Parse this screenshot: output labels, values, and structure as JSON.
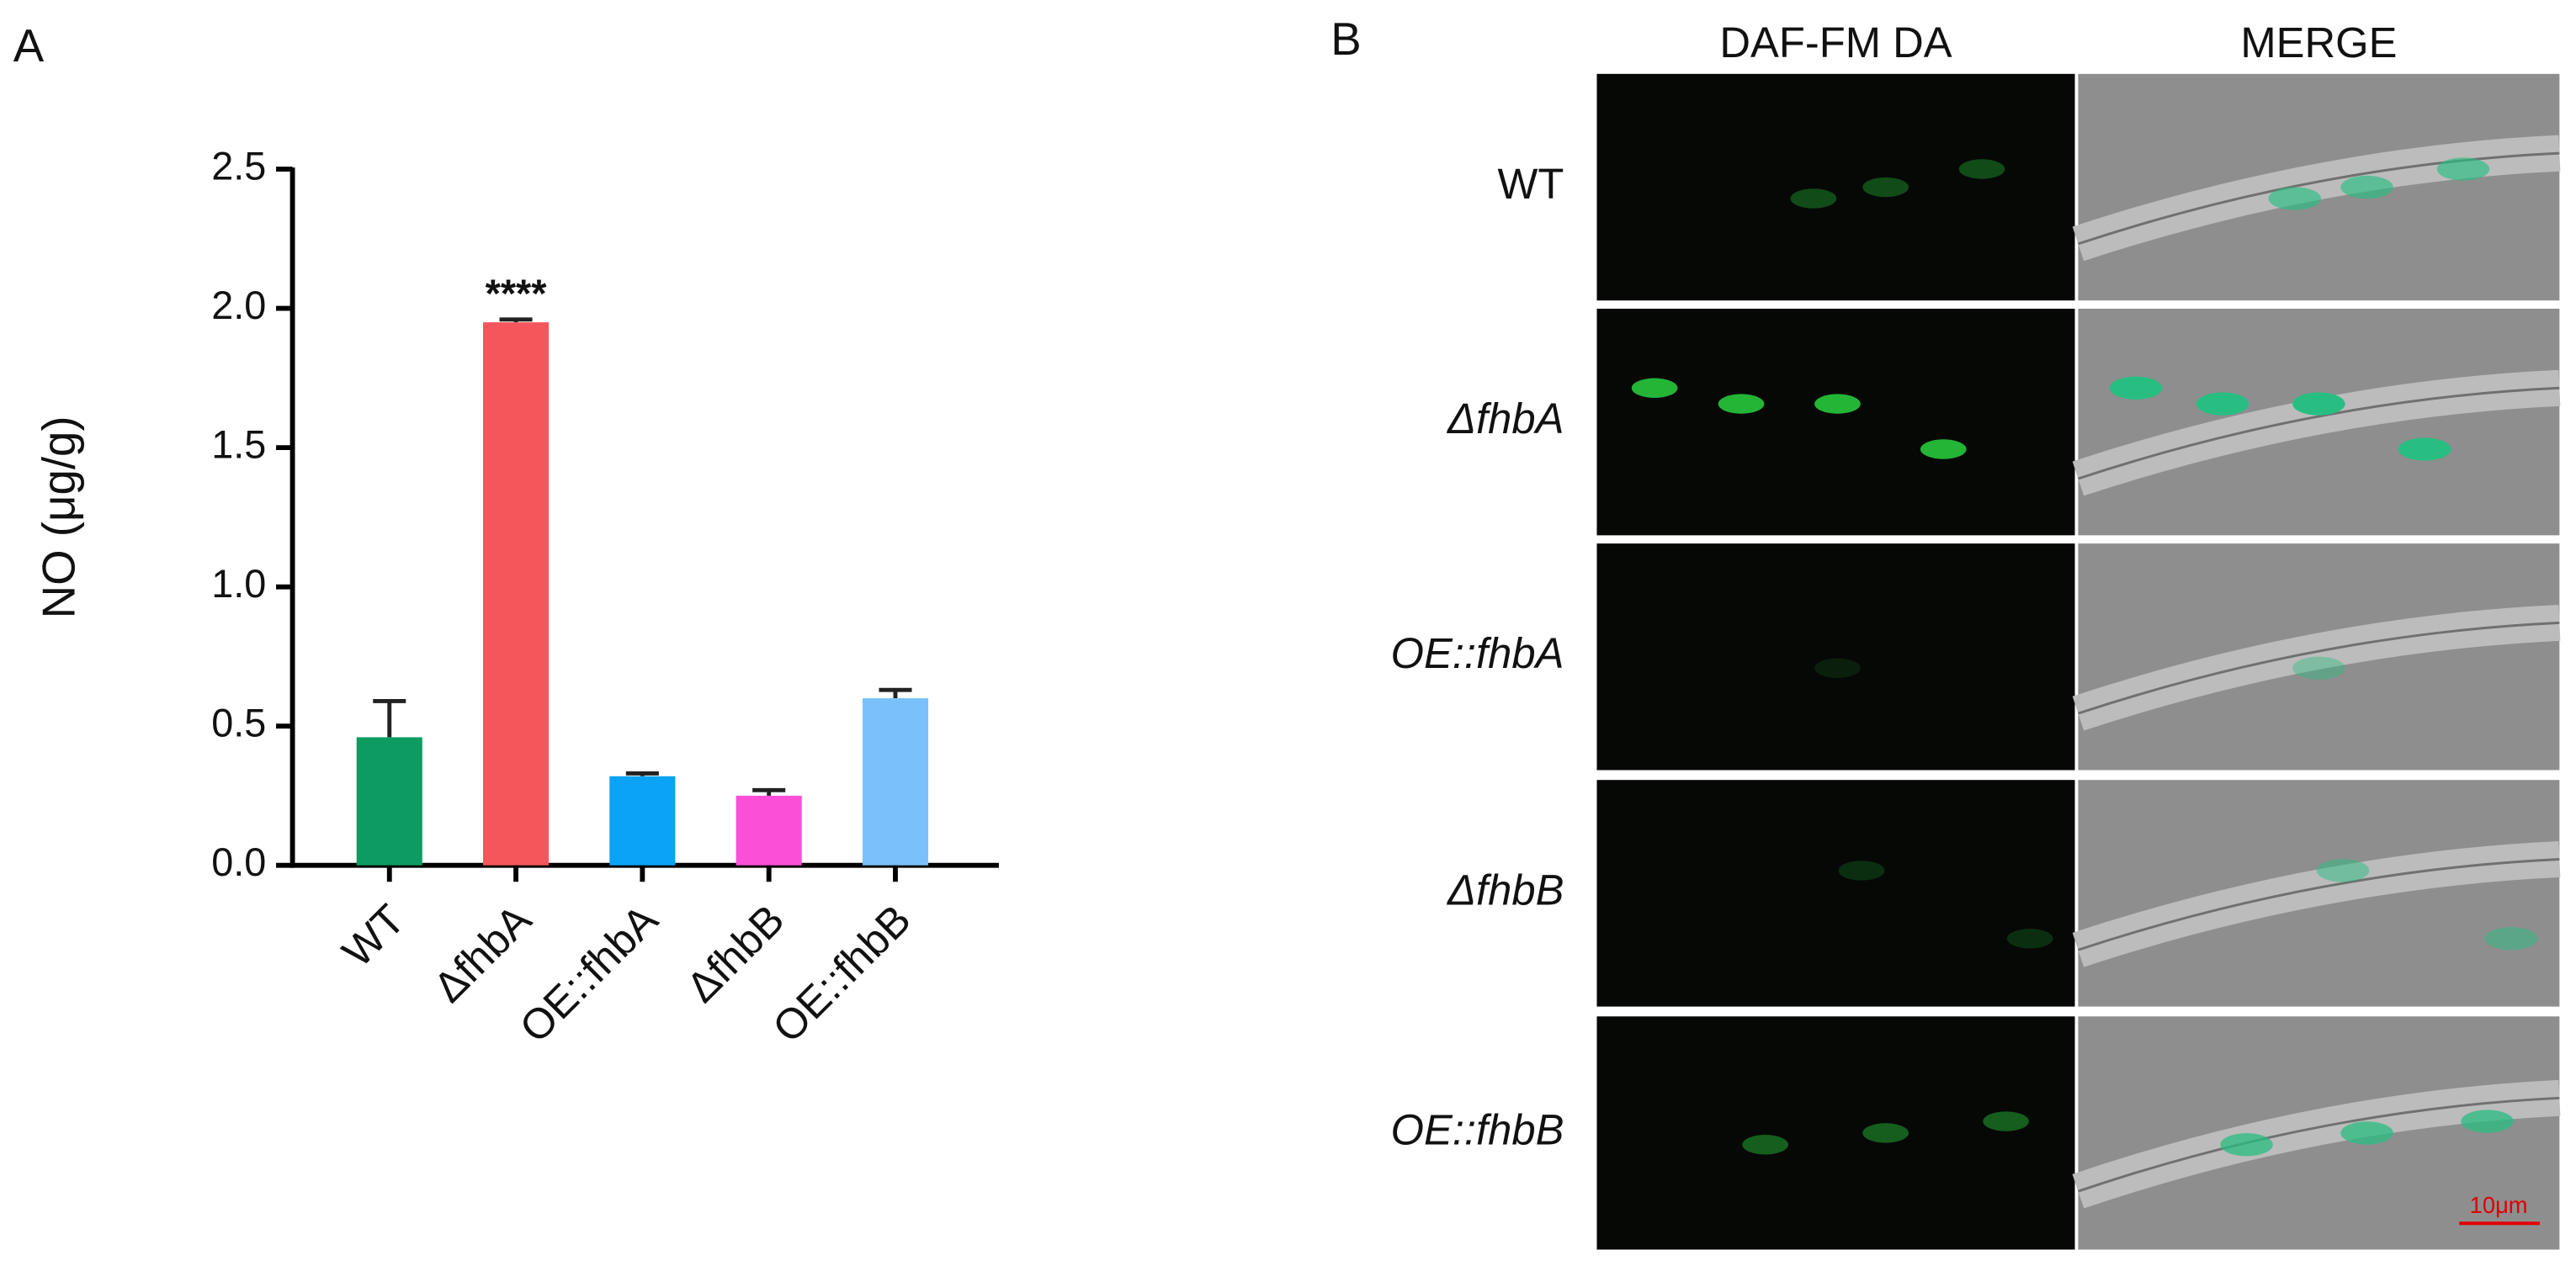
{
  "panel_labels": [
    "A",
    "B"
  ],
  "chart_data": {
    "type": "bar",
    "ylabel": "NO (μg/g)",
    "categories": [
      "WT",
      "ΔfhbA",
      "OE::fhbA",
      "ΔfhbB",
      "OE::fhbB"
    ],
    "values": [
      0.46,
      1.95,
      0.32,
      0.25,
      0.6
    ],
    "errors": [
      0.13,
      0.01,
      0.01,
      0.02,
      0.03
    ],
    "colors": [
      "#0e9b62",
      "#f4565c",
      "#0aa3f6",
      "#fb4fd8",
      "#7ac1fb"
    ],
    "annotation": "****",
    "ylim": [
      0,
      2.5
    ],
    "yticks": [
      {
        "value": 0,
        "label": "0.0"
      },
      0.5,
      {
        "value": 1,
        "label": "1.0"
      },
      1.5,
      {
        "value": 2,
        "label": "2.0"
      },
      2.5
    ]
  },
  "micrographs": {
    "columns": [
      "DAF-FM DA",
      "MERGE"
    ],
    "rows": [
      "WT",
      "ΔfhbA",
      "OE::fhbA",
      "ΔfhbB",
      "OE::fhbB"
    ],
    "scale_bar": "10μm"
  }
}
